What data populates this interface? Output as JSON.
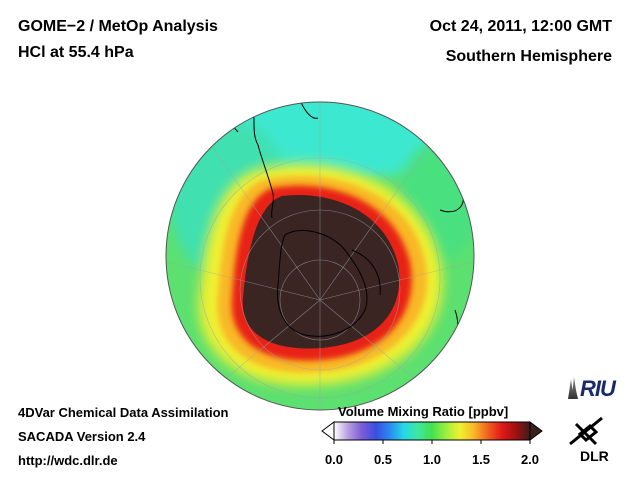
{
  "header": {
    "title_line1": "GOME−2 / MetOp Analysis",
    "title_line2": "HCl at 55.4 hPa",
    "date": "Oct 24, 2011, 12:00 GMT",
    "region": "Southern Hemisphere"
  },
  "footer": {
    "line1": "4DVar Chemical Data Assimilation",
    "line2": "SACADA Version 2.4",
    "url": "http://wdc.dlr.de"
  },
  "colorbar": {
    "title": "Volume Mixing Ratio [ppbv]",
    "ticks": [
      "0.0",
      "0.5",
      "1.0",
      "1.5",
      "2.0"
    ],
    "min": 0.0,
    "max": 2.0,
    "colors": [
      "#ffffff",
      "#b89ee0",
      "#7a5cd6",
      "#3a4ee0",
      "#2a8cf0",
      "#27d8e8",
      "#3ce8a0",
      "#44e050",
      "#9cf040",
      "#f0f030",
      "#f8b828",
      "#f06020",
      "#e01818",
      "#a01010",
      "#3a1e1c"
    ]
  },
  "logos": {
    "riu": "RIU",
    "dlr": "DLR"
  },
  "map": {
    "projection": "orthographic south-polar view",
    "hole_color": "#3b2523",
    "rim_colors": [
      "#e01818",
      "#f06020",
      "#f8c030",
      "#b8f040",
      "#40e060",
      "#30e0c8"
    ]
  }
}
